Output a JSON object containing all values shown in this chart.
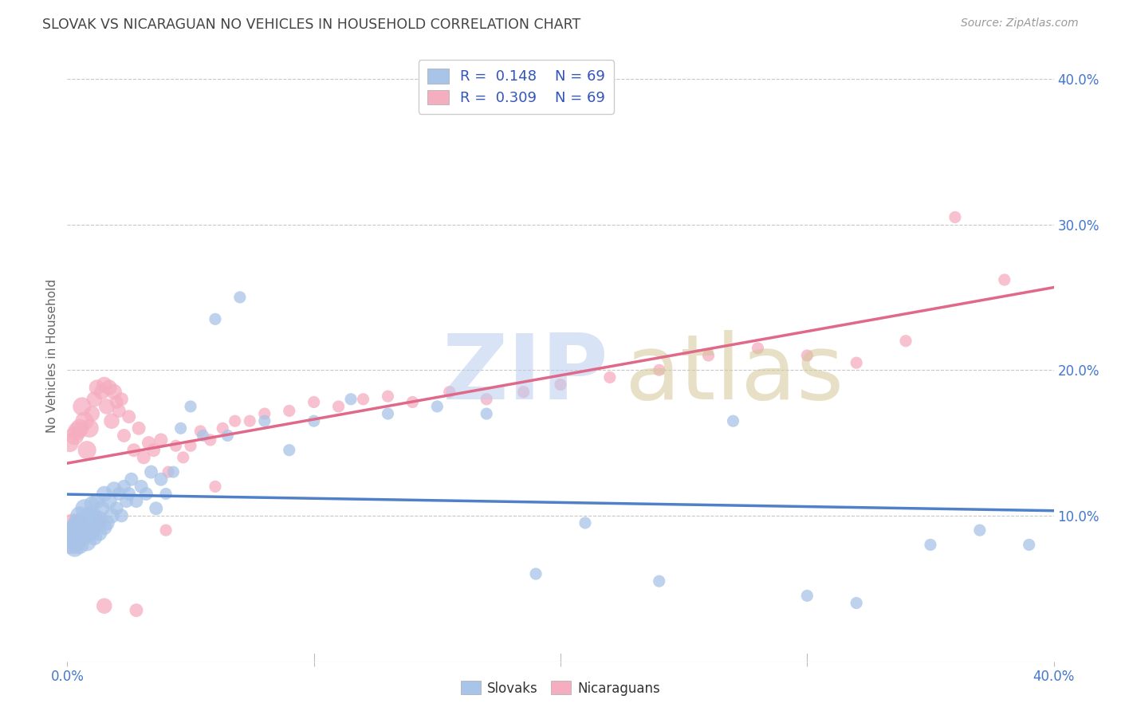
{
  "title": "SLOVAK VS NICARAGUAN NO VEHICLES IN HOUSEHOLD CORRELATION CHART",
  "source": "Source: ZipAtlas.com",
  "ylabel": "No Vehicles in Household",
  "xlim": [
    0.0,
    0.4
  ],
  "ylim": [
    0.0,
    0.42
  ],
  "background_color": "#ffffff",
  "grid_color": "#c8c8c8",
  "title_color": "#444444",
  "source_color": "#999999",
  "blue_color": "#a8c4e8",
  "pink_color": "#f5adc0",
  "blue_line_color": "#5080c8",
  "pink_line_color": "#e06888",
  "blue_R": 0.148,
  "blue_N": 69,
  "pink_R": 0.309,
  "pink_N": 69,
  "legend_color": "#3355bb",
  "legend_N_color": "#cc2200",
  "blue_scatter_x": [
    0.001,
    0.002,
    0.002,
    0.003,
    0.003,
    0.004,
    0.004,
    0.005,
    0.005,
    0.006,
    0.006,
    0.007,
    0.007,
    0.008,
    0.008,
    0.009,
    0.009,
    0.01,
    0.01,
    0.011,
    0.011,
    0.012,
    0.012,
    0.013,
    0.013,
    0.014,
    0.015,
    0.015,
    0.016,
    0.017,
    0.018,
    0.019,
    0.02,
    0.021,
    0.022,
    0.023,
    0.024,
    0.025,
    0.026,
    0.028,
    0.03,
    0.032,
    0.034,
    0.036,
    0.038,
    0.04,
    0.043,
    0.046,
    0.05,
    0.055,
    0.06,
    0.065,
    0.07,
    0.08,
    0.09,
    0.1,
    0.115,
    0.13,
    0.15,
    0.17,
    0.19,
    0.21,
    0.24,
    0.27,
    0.3,
    0.32,
    0.35,
    0.37,
    0.39
  ],
  "blue_scatter_y": [
    0.08,
    0.085,
    0.09,
    0.078,
    0.092,
    0.082,
    0.095,
    0.08,
    0.1,
    0.088,
    0.095,
    0.09,
    0.105,
    0.082,
    0.098,
    0.088,
    0.1,
    0.09,
    0.108,
    0.085,
    0.1,
    0.092,
    0.11,
    0.088,
    0.098,
    0.105,
    0.092,
    0.115,
    0.095,
    0.11,
    0.1,
    0.118,
    0.105,
    0.115,
    0.1,
    0.12,
    0.11,
    0.115,
    0.125,
    0.11,
    0.12,
    0.115,
    0.13,
    0.105,
    0.125,
    0.115,
    0.13,
    0.16,
    0.175,
    0.155,
    0.235,
    0.155,
    0.25,
    0.165,
    0.145,
    0.165,
    0.18,
    0.17,
    0.175,
    0.17,
    0.06,
    0.095,
    0.055,
    0.165,
    0.045,
    0.04,
    0.08,
    0.09,
    0.08
  ],
  "pink_scatter_x": [
    0.001,
    0.002,
    0.002,
    0.003,
    0.003,
    0.004,
    0.004,
    0.005,
    0.005,
    0.006,
    0.006,
    0.007,
    0.008,
    0.009,
    0.01,
    0.01,
    0.011,
    0.012,
    0.013,
    0.014,
    0.015,
    0.016,
    0.017,
    0.018,
    0.019,
    0.02,
    0.021,
    0.022,
    0.023,
    0.025,
    0.027,
    0.029,
    0.031,
    0.033,
    0.035,
    0.038,
    0.041,
    0.044,
    0.047,
    0.05,
    0.054,
    0.058,
    0.063,
    0.068,
    0.074,
    0.08,
    0.09,
    0.1,
    0.11,
    0.12,
    0.13,
    0.14,
    0.155,
    0.17,
    0.185,
    0.2,
    0.22,
    0.24,
    0.26,
    0.28,
    0.3,
    0.32,
    0.34,
    0.36,
    0.38,
    0.015,
    0.028,
    0.04,
    0.06
  ],
  "pink_scatter_y": [
    0.15,
    0.085,
    0.095,
    0.155,
    0.08,
    0.158,
    0.09,
    0.095,
    0.16,
    0.085,
    0.175,
    0.165,
    0.145,
    0.16,
    0.17,
    0.088,
    0.18,
    0.188,
    0.095,
    0.185,
    0.19,
    0.175,
    0.188,
    0.165,
    0.185,
    0.178,
    0.172,
    0.18,
    0.155,
    0.168,
    0.145,
    0.16,
    0.14,
    0.15,
    0.145,
    0.152,
    0.13,
    0.148,
    0.14,
    0.148,
    0.158,
    0.152,
    0.16,
    0.165,
    0.165,
    0.17,
    0.172,
    0.178,
    0.175,
    0.18,
    0.182,
    0.178,
    0.185,
    0.18,
    0.185,
    0.19,
    0.195,
    0.2,
    0.21,
    0.215,
    0.21,
    0.205,
    0.22,
    0.305,
    0.262,
    0.038,
    0.035,
    0.09,
    0.12
  ]
}
